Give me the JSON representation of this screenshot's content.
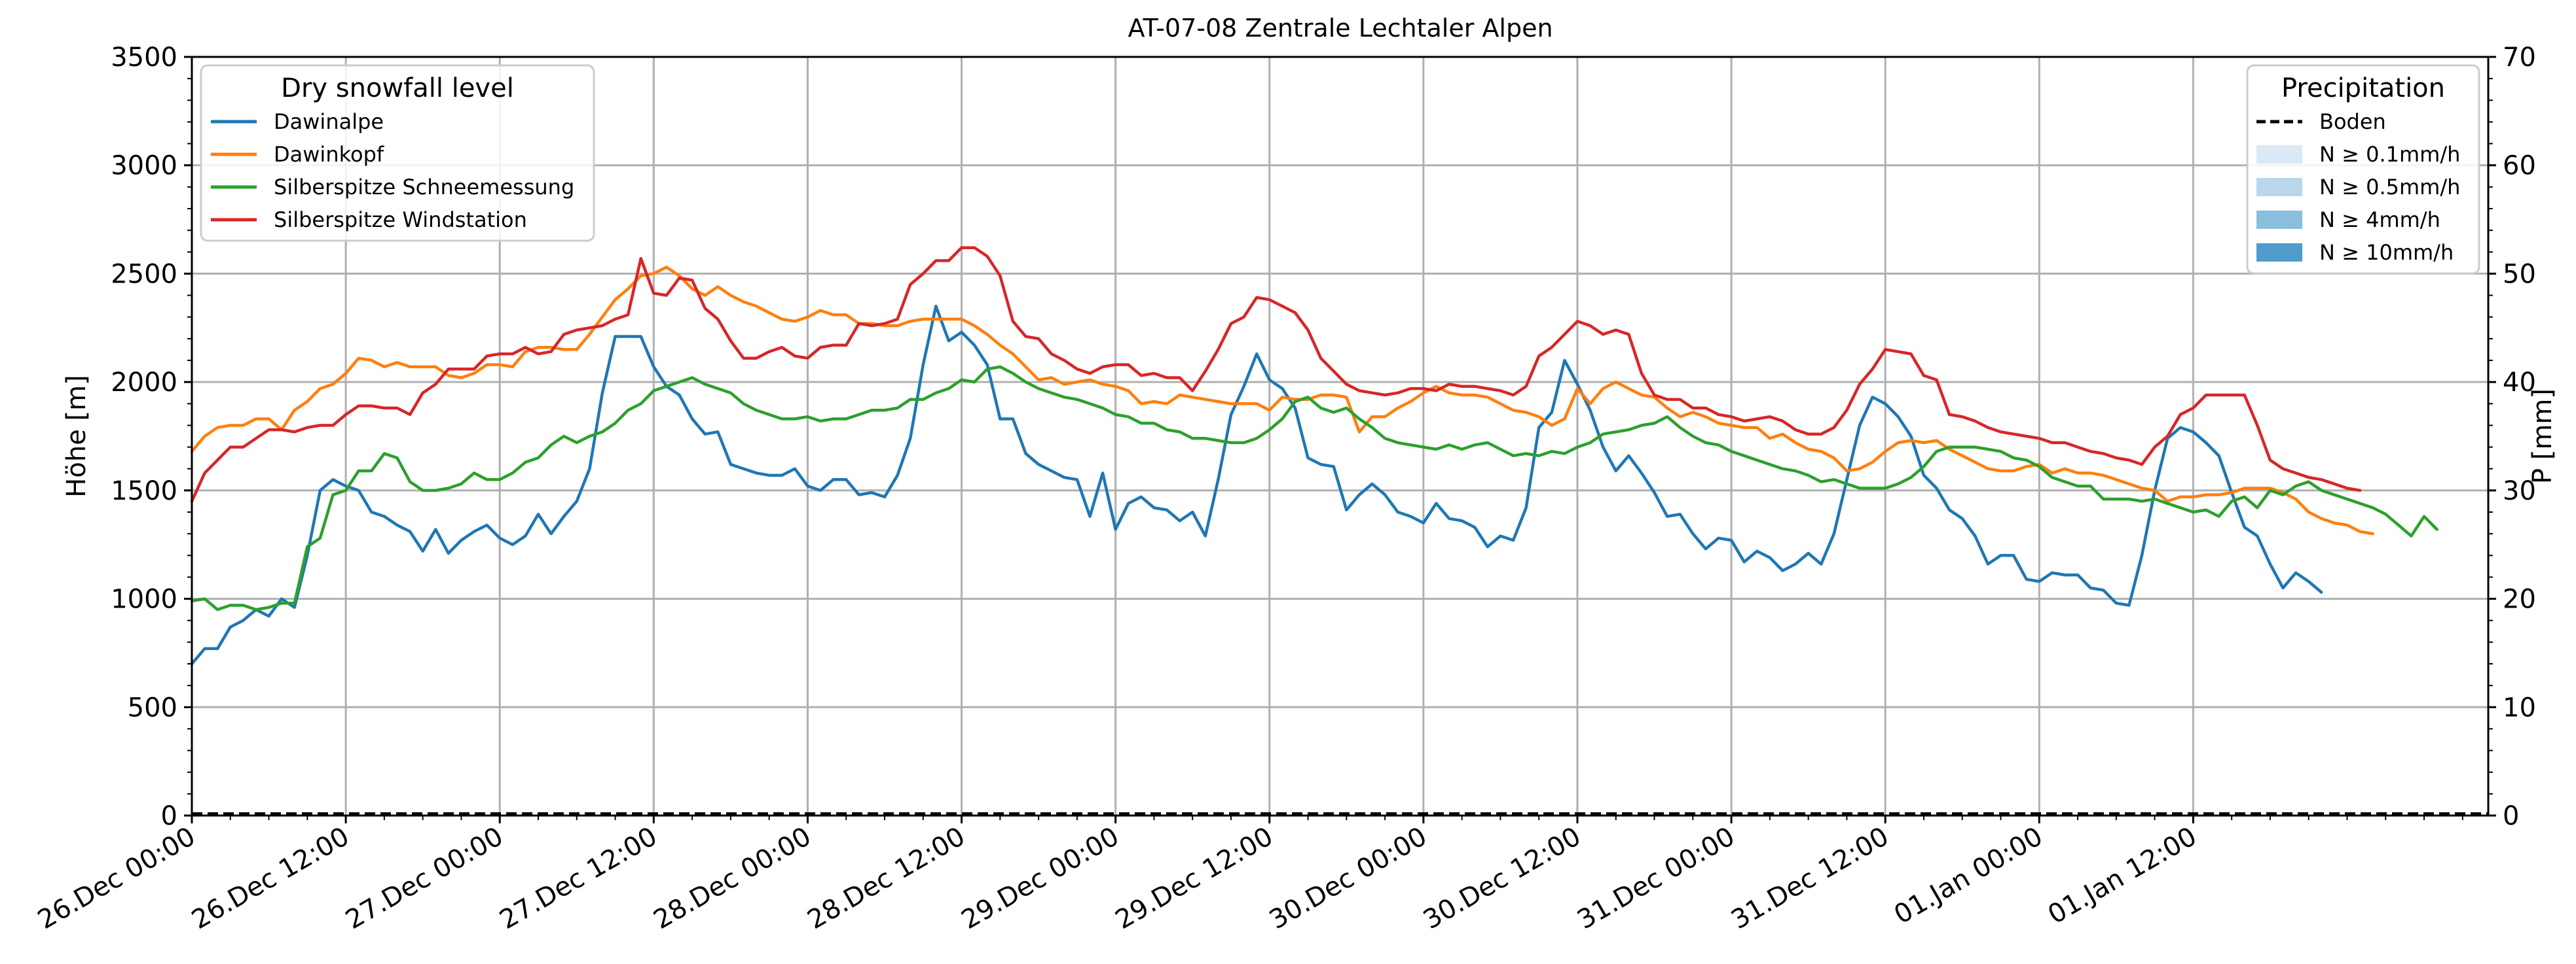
{
  "chart_data": {
    "type": "line",
    "title": "AT-07-08 Zentrale Lechtaler Alpen",
    "ylabel": "Höhe [m]",
    "y2label": "P [mm]",
    "ylim": [
      0,
      3500
    ],
    "y2lim": [
      0,
      70
    ],
    "yticks": [
      0,
      500,
      1000,
      1500,
      2000,
      2500,
      3000,
      3500
    ],
    "y2ticks": [
      0,
      10,
      20,
      30,
      40,
      50,
      60,
      70
    ],
    "x_start": "26.Dec 00:00",
    "x_end": "02.Jan 11:00",
    "x_step_hours": 1,
    "xticks": [
      "26.Dec 00:00",
      "26.Dec 12:00",
      "27.Dec 00:00",
      "27.Dec 12:00",
      "28.Dec 00:00",
      "28.Dec 12:00",
      "29.Dec 00:00",
      "29.Dec 12:00",
      "30.Dec 00:00",
      "30.Dec 12:00",
      "31.Dec 00:00",
      "31.Dec 12:00",
      "01.Jan 00:00",
      "01.Jan 12:00"
    ],
    "grid": true,
    "legend_left": {
      "title": "Dry snowfall level",
      "placement": "top-left"
    },
    "legend_right": {
      "title": "Precipitation",
      "placement": "top-right",
      "entries": [
        {
          "label": "Boden",
          "style": "dashed",
          "color": "#000000"
        },
        {
          "label": "N ≥ 0.1mm/h",
          "color": "#dbe9f6"
        },
        {
          "label": "N ≥ 0.5mm/h",
          "color": "#bad6eb"
        },
        {
          "label": "N ≥ 4mm/h",
          "color": "#89bedc"
        },
        {
          "label": "N ≥ 10mm/h",
          "color": "#4f9bcb"
        }
      ]
    },
    "ground_precipitation": 0,
    "series": [
      {
        "name": "Dawinalpe",
        "color": "#1f77b4",
        "values": [
          700,
          770,
          770,
          870,
          900,
          950,
          920,
          1000,
          960,
          1200,
          1500,
          1550,
          1520,
          1500,
          1400,
          1380,
          1340,
          1310,
          1220,
          1320,
          1210,
          1270,
          1310,
          1340,
          1280,
          1250,
          1290,
          1390,
          1300,
          1380,
          1450,
          1600,
          1950,
          2210,
          2210,
          2210,
          2070,
          1980,
          1940,
          1830,
          1760,
          1770,
          1620,
          1600,
          1580,
          1570,
          1570,
          1600,
          1520,
          1500,
          1550,
          1550,
          1480,
          1490,
          1470,
          1570,
          1740,
          2080,
          2350,
          2190,
          2230,
          2170,
          2080,
          1830,
          1830,
          1670,
          1620,
          1590,
          1560,
          1550,
          1380,
          1580,
          1320,
          1440,
          1470,
          1420,
          1410,
          1360,
          1400,
          1290,
          1550,
          1850,
          1980,
          2130,
          2010,
          1970,
          1880,
          1650,
          1620,
          1610,
          1410,
          1480,
          1530,
          1480,
          1400,
          1380,
          1350,
          1440,
          1370,
          1360,
          1330,
          1240,
          1290,
          1270,
          1420,
          1790,
          1860,
          2100,
          1990,
          1870,
          1700,
          1590,
          1660,
          1580,
          1490,
          1380,
          1390,
          1300,
          1230,
          1280,
          1270,
          1170,
          1220,
          1190,
          1130,
          1160,
          1210,
          1160,
          1300,
          1550,
          1800,
          1930,
          1900,
          1840,
          1750,
          1570,
          1510,
          1410,
          1370,
          1290,
          1160,
          1200,
          1200,
          1090,
          1080,
          1120,
          1110,
          1110,
          1050,
          1040,
          980,
          970,
          1200,
          1500,
          1740,
          1790,
          1770,
          1720,
          1660,
          1490,
          1330,
          1290,
          1160,
          1050,
          1120,
          1080,
          1030
        ]
      },
      {
        "name": "Dawinkopf",
        "color": "#ff7f0e",
        "values": [
          1680,
          1750,
          1790,
          1800,
          1800,
          1830,
          1830,
          1780,
          1870,
          1910,
          1970,
          1990,
          2040,
          2110,
          2100,
          2070,
          2090,
          2070,
          2070,
          2070,
          2030,
          2020,
          2040,
          2080,
          2080,
          2070,
          2140,
          2160,
          2160,
          2150,
          2150,
          2220,
          2300,
          2380,
          2430,
          2490,
          2500,
          2530,
          2490,
          2430,
          2400,
          2440,
          2400,
          2370,
          2350,
          2320,
          2290,
          2280,
          2300,
          2330,
          2310,
          2310,
          2270,
          2270,
          2260,
          2260,
          2280,
          2290,
          2290,
          2290,
          2290,
          2260,
          2220,
          2170,
          2130,
          2070,
          2010,
          2020,
          1990,
          2000,
          2010,
          1990,
          1980,
          1960,
          1900,
          1910,
          1900,
          1940,
          1930,
          1920,
          1910,
          1900,
          1900,
          1900,
          1870,
          1930,
          1920,
          1920,
          1940,
          1940,
          1930,
          1770,
          1840,
          1840,
          1880,
          1910,
          1950,
          1980,
          1950,
          1940,
          1940,
          1930,
          1900,
          1870,
          1860,
          1840,
          1800,
          1830,
          1970,
          1900,
          1970,
          2000,
          1970,
          1940,
          1930,
          1880,
          1840,
          1860,
          1840,
          1810,
          1800,
          1790,
          1790,
          1740,
          1760,
          1720,
          1690,
          1680,
          1650,
          1590,
          1600,
          1630,
          1680,
          1720,
          1730,
          1720,
          1730,
          1690,
          1660,
          1630,
          1600,
          1590,
          1590,
          1610,
          1620,
          1580,
          1600,
          1580,
          1580,
          1570,
          1550,
          1530,
          1510,
          1500,
          1450,
          1470,
          1470,
          1480,
          1480,
          1490,
          1510,
          1510,
          1510,
          1490,
          1460,
          1400,
          1370,
          1350,
          1340,
          1310,
          1300
        ]
      },
      {
        "name": "Silberspitze Schneemessung",
        "color": "#2ca02c",
        "values": [
          990,
          1000,
          950,
          970,
          970,
          950,
          960,
          980,
          980,
          1240,
          1280,
          1480,
          1500,
          1590,
          1590,
          1670,
          1650,
          1540,
          1500,
          1500,
          1510,
          1530,
          1580,
          1550,
          1550,
          1580,
          1630,
          1650,
          1710,
          1750,
          1720,
          1750,
          1770,
          1810,
          1870,
          1900,
          1960,
          1980,
          2000,
          2020,
          1990,
          1970,
          1950,
          1900,
          1870,
          1850,
          1830,
          1830,
          1840,
          1820,
          1830,
          1830,
          1850,
          1870,
          1870,
          1880,
          1920,
          1920,
          1950,
          1970,
          2010,
          2000,
          2060,
          2070,
          2040,
          2000,
          1970,
          1950,
          1930,
          1920,
          1900,
          1880,
          1850,
          1840,
          1810,
          1810,
          1780,
          1770,
          1740,
          1740,
          1730,
          1720,
          1720,
          1740,
          1780,
          1830,
          1910,
          1930,
          1880,
          1860,
          1880,
          1830,
          1790,
          1740,
          1720,
          1710,
          1700,
          1690,
          1710,
          1690,
          1710,
          1720,
          1690,
          1660,
          1670,
          1660,
          1680,
          1670,
          1700,
          1720,
          1760,
          1770,
          1780,
          1800,
          1810,
          1840,
          1790,
          1750,
          1720,
          1710,
          1680,
          1660,
          1640,
          1620,
          1600,
          1590,
          1570,
          1540,
          1550,
          1530,
          1510,
          1510,
          1510,
          1530,
          1560,
          1610,
          1680,
          1700,
          1700,
          1700,
          1690,
          1680,
          1650,
          1640,
          1610,
          1560,
          1540,
          1520,
          1520,
          1460,
          1460,
          1460,
          1450,
          1460,
          1440,
          1420,
          1400,
          1410,
          1380,
          1450,
          1470,
          1420,
          1500,
          1480,
          1520,
          1540,
          1500,
          1480,
          1460,
          1440,
          1420,
          1390,
          1340,
          1290,
          1380,
          1320
        ]
      },
      {
        "name": "Silberspitze Windstation",
        "color": "#d62728",
        "values": [
          1450,
          1580,
          1640,
          1700,
          1700,
          1740,
          1780,
          1780,
          1770,
          1790,
          1800,
          1800,
          1850,
          1890,
          1890,
          1880,
          1880,
          1850,
          1950,
          1990,
          2060,
          2060,
          2060,
          2120,
          2130,
          2130,
          2160,
          2130,
          2140,
          2220,
          2240,
          2250,
          2260,
          2290,
          2310,
          2570,
          2410,
          2400,
          2480,
          2470,
          2340,
          2290,
          2190,
          2110,
          2110,
          2140,
          2160,
          2120,
          2110,
          2160,
          2170,
          2170,
          2270,
          2260,
          2270,
          2290,
          2450,
          2500,
          2560,
          2560,
          2620,
          2620,
          2580,
          2490,
          2280,
          2210,
          2200,
          2130,
          2100,
          2060,
          2040,
          2070,
          2080,
          2080,
          2030,
          2040,
          2020,
          2020,
          1960,
          2050,
          2150,
          2270,
          2300,
          2390,
          2380,
          2350,
          2320,
          2240,
          2110,
          2050,
          1990,
          1960,
          1950,
          1940,
          1950,
          1970,
          1970,
          1960,
          1990,
          1980,
          1980,
          1970,
          1960,
          1940,
          1980,
          2120,
          2160,
          2220,
          2280,
          2260,
          2220,
          2240,
          2220,
          2040,
          1940,
          1920,
          1920,
          1880,
          1880,
          1850,
          1840,
          1820,
          1830,
          1840,
          1820,
          1780,
          1760,
          1760,
          1790,
          1870,
          1990,
          2060,
          2150,
          2140,
          2130,
          2030,
          2010,
          1850,
          1840,
          1820,
          1790,
          1770,
          1760,
          1750,
          1740,
          1720,
          1720,
          1700,
          1680,
          1670,
          1650,
          1640,
          1620,
          1700,
          1750,
          1850,
          1880,
          1940,
          1940,
          1940,
          1940,
          1800,
          1640,
          1600,
          1580,
          1560,
          1550,
          1530,
          1510,
          1500
        ]
      }
    ]
  }
}
